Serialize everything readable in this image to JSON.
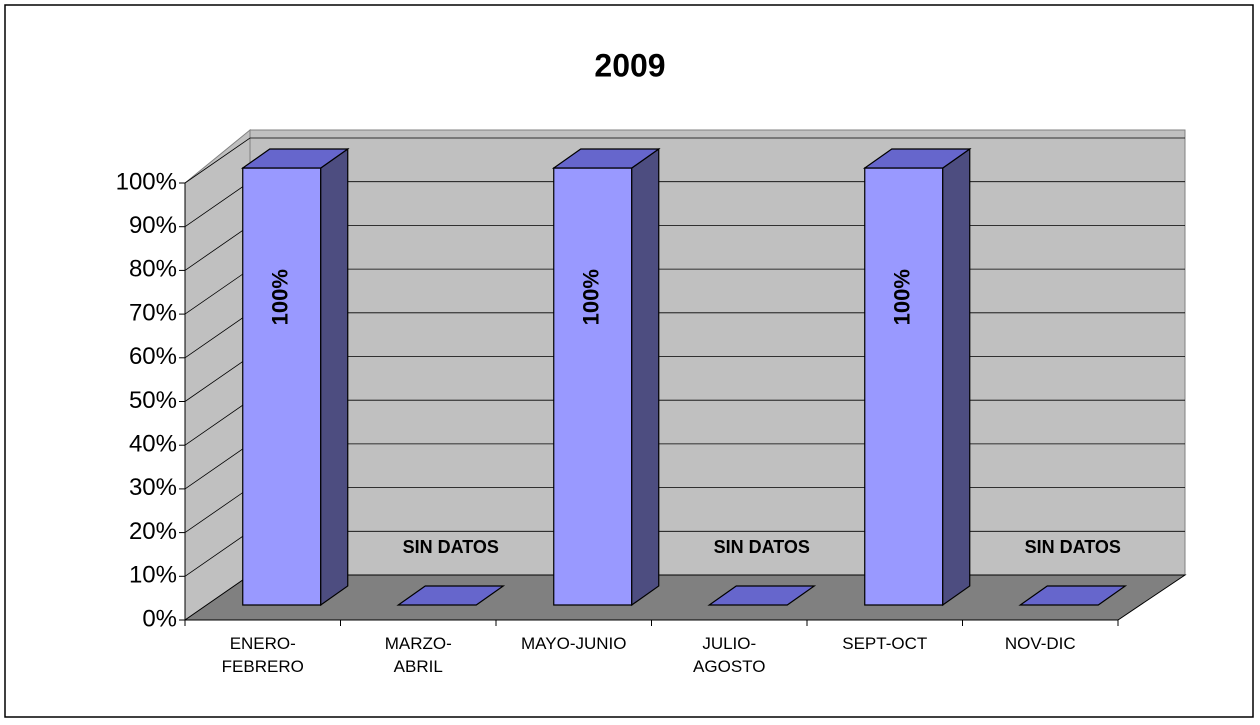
{
  "chart_data": {
    "type": "bar3d",
    "title": "2009",
    "categories": [
      "ENERO-FEBRERO",
      "MARZO-ABRIL",
      "MAYO-JUNIO",
      "JULIO-AGOSTO",
      "SEPT-OCT",
      "NOV-DIC"
    ],
    "values": [
      100,
      0,
      100,
      0,
      100,
      0
    ],
    "value_labels": [
      "100%",
      "SIN DATOS",
      "100%",
      "SIN DATOS",
      "100%",
      "SIN DATOS"
    ],
    "color": "#9999ff",
    "ylim": [
      0,
      100
    ],
    "yticks": [
      {
        "value": 0,
        "label": "0%"
      },
      {
        "value": 10,
        "label": "10%"
      },
      {
        "value": 20,
        "label": "20%"
      },
      {
        "value": 30,
        "label": "30%"
      },
      {
        "value": 40,
        "label": "40%"
      },
      {
        "value": 50,
        "label": "50%"
      },
      {
        "value": 60,
        "label": "60%"
      },
      {
        "value": 70,
        "label": "70%"
      },
      {
        "value": 80,
        "label": "80%"
      },
      {
        "value": 90,
        "label": "90%"
      },
      {
        "value": 100,
        "label": "100%"
      }
    ],
    "grid": true
  }
}
